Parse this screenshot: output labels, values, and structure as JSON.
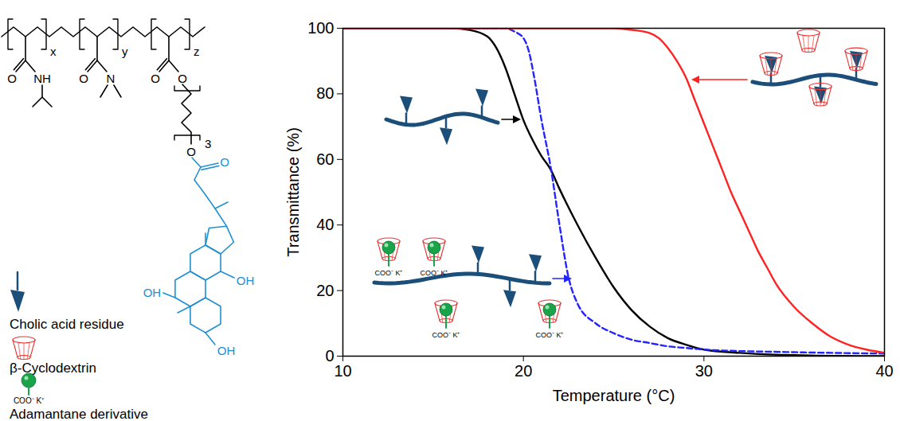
{
  "chart_data": {
    "type": "line",
    "xlabel": "Temperature (°C)",
    "ylabel": "Transmittance (%)",
    "xlim": [
      10,
      40
    ],
    "xticks": [
      10,
      20,
      30,
      40
    ],
    "ylim": [
      0,
      100
    ],
    "yticks": [
      0,
      20,
      40,
      60,
      80,
      100
    ],
    "grid": false,
    "series": [
      {
        "color": "#000000",
        "line_style": "solid",
        "x": [
          10,
          16,
          17,
          18,
          18.5,
          19,
          19.5,
          20,
          20.5,
          21,
          21.5,
          22,
          23,
          24,
          25,
          26,
          27,
          28,
          29,
          30,
          32,
          35,
          40
        ],
        "values": [
          100,
          100,
          99.5,
          97.5,
          94,
          88,
          80,
          72,
          66,
          61,
          57,
          51,
          40,
          30,
          21,
          14,
          9,
          5.5,
          3.5,
          2,
          1,
          0.3,
          0
        ]
      },
      {
        "color": "#2424ff",
        "line_style": "dashed",
        "x": [
          10,
          18,
          19,
          19.5,
          20,
          20.3,
          20.6,
          21,
          21.5,
          22,
          22.5,
          23,
          24,
          25,
          26,
          27,
          28,
          29,
          30,
          35,
          40
        ],
        "values": [
          100,
          100,
          100,
          99,
          97,
          93,
          85,
          72,
          58,
          40,
          24,
          16,
          10,
          7,
          5,
          4,
          3,
          2.5,
          2,
          1.2,
          0.8
        ]
      },
      {
        "color": "#ff2222",
        "line_style": "solid",
        "x": [
          10,
          20,
          25,
          26,
          27,
          27.5,
          28,
          28.5,
          29,
          29.5,
          30,
          30.5,
          31,
          31.5,
          32,
          32.5,
          33,
          33.5,
          34,
          35,
          36,
          37,
          38,
          39,
          40
        ],
        "values": [
          100,
          100,
          100,
          99.5,
          98.5,
          97,
          94,
          90,
          85,
          78,
          71,
          64,
          57,
          50,
          44,
          38,
          32,
          27,
          22,
          15,
          10,
          6,
          3.5,
          2,
          1
        ]
      }
    ]
  },
  "scheme": {
    "subscripts": [
      "x",
      "y",
      "z"
    ],
    "spacer_subscript": "3",
    "nipam": {
      "carbonyl_O": "O",
      "amide": "NH"
    },
    "dma": {
      "carbonyl_O": "O",
      "amide": "N"
    },
    "linker": {
      "carbonyl_O": "O",
      "ester_O": "O",
      "spacer_O": "O",
      "cholate_carbonyl_O": "O"
    },
    "hydroxyls": [
      "OH",
      "OH",
      "OH"
    ],
    "legend": {
      "cholic_acid": "Cholic acid residue",
      "cyclodextrin": "β-Cyclodextrin",
      "adamantane": "Adamantane derivative"
    },
    "counterion_label": "COO⁻ K⁺"
  }
}
